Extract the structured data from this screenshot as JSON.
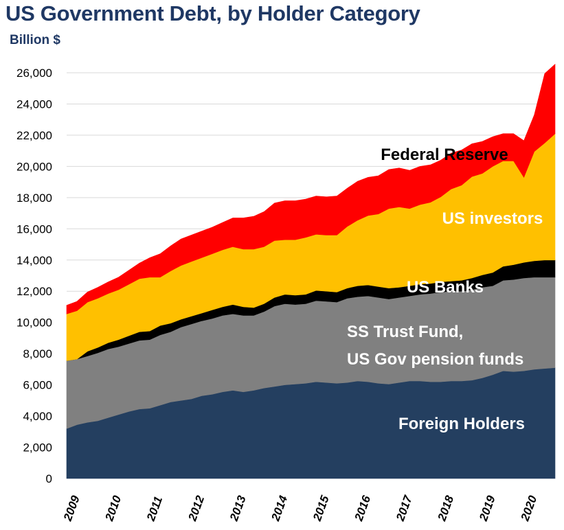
{
  "chart_data": {
    "type": "area",
    "stacked": true,
    "title": "US Government Debt, by Holder Category",
    "subtitle": "Billion $",
    "ylim": [
      0,
      26000
    ],
    "yticks": [
      0,
      2000,
      4000,
      6000,
      8000,
      10000,
      12000,
      14000,
      16000,
      18000,
      20000,
      22000,
      24000,
      26000
    ],
    "ytick_labels": [
      "0",
      "2,000",
      "4,000",
      "6,000",
      "8,000",
      "10,000",
      "12,000",
      "14,000",
      "16,000",
      "18,000",
      "20,000",
      "22,000",
      "24,000",
      "26,000"
    ],
    "xlim": [
      2009,
      2020.75
    ],
    "xtick_labels": [
      "2009",
      "2010",
      "2011",
      "2012",
      "2013",
      "2014",
      "2015",
      "2016",
      "2017",
      "2018",
      "2019",
      "2020"
    ],
    "grid": "horizontal",
    "x": [
      2009.0,
      2009.25,
      2009.5,
      2009.75,
      2010.0,
      2010.25,
      2010.5,
      2010.75,
      2011.0,
      2011.25,
      2011.5,
      2011.75,
      2012.0,
      2012.25,
      2012.5,
      2012.75,
      2013.0,
      2013.25,
      2013.5,
      2013.75,
      2014.0,
      2014.25,
      2014.5,
      2014.75,
      2015.0,
      2015.25,
      2015.5,
      2015.75,
      2016.0,
      2016.25,
      2016.5,
      2016.75,
      2017.0,
      2017.25,
      2017.5,
      2017.75,
      2018.0,
      2018.25,
      2018.5,
      2018.75,
      2019.0,
      2019.25,
      2019.5,
      2019.75,
      2020.0,
      2020.25,
      2020.5,
      2020.75
    ],
    "series": [
      {
        "name": "Foreign Holders",
        "color": "#243f60",
        "label_color": "#ffffff",
        "values": [
          3200,
          3450,
          3600,
          3700,
          3900,
          4100,
          4300,
          4450,
          4500,
          4700,
          4900,
          5000,
          5100,
          5300,
          5400,
          5550,
          5650,
          5550,
          5650,
          5800,
          5900,
          6000,
          6050,
          6100,
          6200,
          6150,
          6100,
          6150,
          6250,
          6200,
          6100,
          6050,
          6150,
          6250,
          6250,
          6200,
          6200,
          6250,
          6250,
          6300,
          6450,
          6650,
          6900,
          6850,
          6900,
          7000,
          7050,
          7100
        ]
      },
      {
        "name": "SS Trust Fund, US Gov pension funds",
        "color": "#808080",
        "label_color": "#ffffff",
        "values": [
          4350,
          4200,
          4250,
          4350,
          4400,
          4350,
          4350,
          4400,
          4400,
          4500,
          4500,
          4700,
          4800,
          4800,
          4850,
          4900,
          4900,
          4900,
          4800,
          4900,
          5150,
          5200,
          5100,
          5100,
          5200,
          5200,
          5200,
          5400,
          5400,
          5500,
          5500,
          5450,
          5450,
          5450,
          5550,
          5650,
          5750,
          5750,
          5750,
          5800,
          5800,
          5700,
          5800,
          5900,
          5950,
          5900,
          5850,
          5800
        ]
      },
      {
        "name": "US Banks",
        "color": "#000000",
        "label_color": "#ffffff",
        "values": [
          0,
          0,
          300,
          350,
          400,
          450,
          500,
          550,
          550,
          600,
          550,
          500,
          500,
          500,
          550,
          550,
          600,
          550,
          500,
          500,
          550,
          600,
          600,
          600,
          650,
          650,
          650,
          650,
          700,
          700,
          700,
          700,
          650,
          650,
          650,
          650,
          650,
          650,
          700,
          750,
          800,
          850,
          900,
          950,
          1000,
          1050,
          1100,
          1100
        ]
      },
      {
        "name": "US investors",
        "color": "#ffc000",
        "label_color": "#ffffff",
        "values": [
          3000,
          3100,
          3150,
          3150,
          3150,
          3200,
          3300,
          3400,
          3450,
          3100,
          3350,
          3450,
          3500,
          3550,
          3600,
          3650,
          3700,
          3700,
          3750,
          3650,
          3650,
          3500,
          3550,
          3650,
          3600,
          3600,
          3650,
          3950,
          4200,
          4450,
          4650,
          5100,
          5150,
          4950,
          5100,
          5200,
          5450,
          5900,
          6100,
          6500,
          6500,
          6800,
          6750,
          6650,
          5450,
          7000,
          7500,
          8100
        ]
      },
      {
        "name": "Federal Reserve",
        "color": "#ff0000",
        "label_color": "#000000",
        "values": [
          550,
          600,
          650,
          700,
          750,
          800,
          900,
          1000,
          1250,
          1500,
          1600,
          1700,
          1700,
          1700,
          1700,
          1750,
          1850,
          2000,
          2100,
          2250,
          2400,
          2500,
          2500,
          2450,
          2450,
          2450,
          2500,
          2450,
          2500,
          2450,
          2450,
          2500,
          2500,
          2450,
          2450,
          2400,
          2350,
          2300,
          2250,
          2100,
          2050,
          1900,
          1750,
          1750,
          2350,
          2350,
          4450,
          4450
        ]
      }
    ]
  }
}
